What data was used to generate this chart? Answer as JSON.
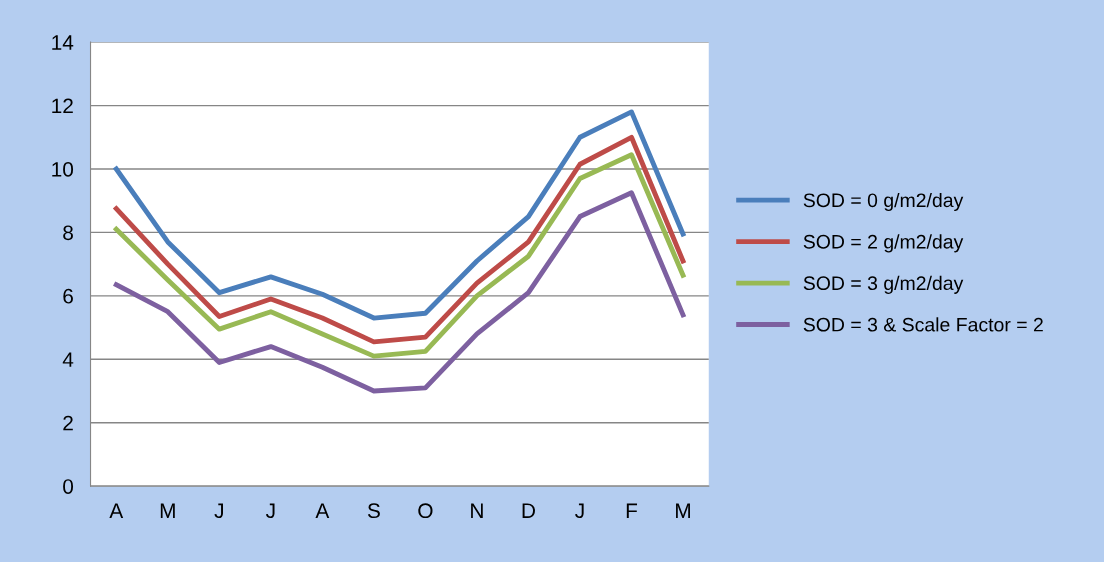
{
  "chart_data": {
    "type": "line",
    "categories": [
      "A",
      "M",
      "J",
      "J",
      "A",
      "S",
      "O",
      "N",
      "D",
      "J",
      "F",
      "M"
    ],
    "series": [
      {
        "name": "SOD = 0 g/m2/day",
        "color": "#4a7ebb",
        "values": [
          10.0,
          7.7,
          6.1,
          6.6,
          6.05,
          5.3,
          5.45,
          7.1,
          8.5,
          11.0,
          11.8,
          7.95
        ]
      },
      {
        "name": "SOD = 2 g/m2/day",
        "color": "#be4b48",
        "values": [
          8.75,
          7.0,
          5.35,
          5.9,
          5.3,
          4.55,
          4.7,
          6.4,
          7.7,
          10.15,
          11.0,
          7.1
        ]
      },
      {
        "name": "SOD = 3 g/m2/day",
        "color": "#98b954",
        "values": [
          8.1,
          6.5,
          4.95,
          5.5,
          4.8,
          4.1,
          4.25,
          6.0,
          7.25,
          9.7,
          10.45,
          6.65
        ]
      },
      {
        "name": "SOD = 3 & Scale Factor = 2",
        "color": "#7d60a0",
        "values": [
          6.35,
          5.5,
          3.9,
          4.4,
          3.75,
          3.0,
          3.1,
          4.8,
          6.1,
          8.5,
          9.25,
          5.4
        ]
      }
    ],
    "ylim": [
      0,
      14
    ],
    "yticks": [
      0,
      2,
      4,
      6,
      8,
      10,
      12,
      14
    ],
    "grid": "y",
    "legend": "right",
    "marker": "none",
    "line_style": "solid"
  }
}
